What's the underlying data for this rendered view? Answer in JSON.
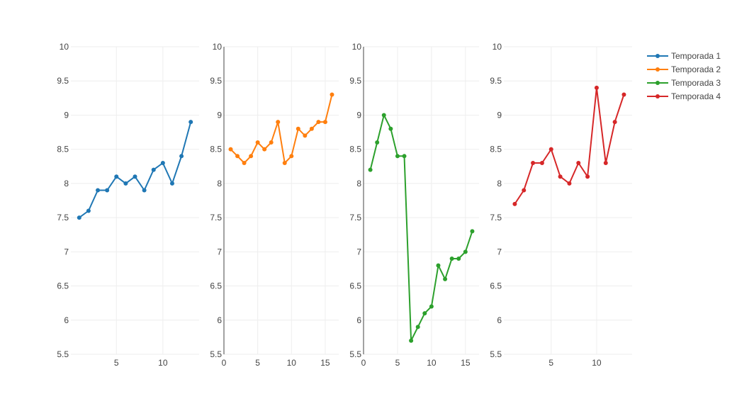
{
  "chart_data": {
    "type": "line",
    "layout": "small-multiples",
    "legend": {
      "placement": "top-right",
      "entries": [
        "Temporada 1",
        "Temporada 2",
        "Temporada 3",
        "Temporada 4"
      ]
    },
    "panels": [
      {
        "series_name": "Temporada 1",
        "color": "#1f77b4",
        "x": [
          1,
          2,
          3,
          4,
          5,
          6,
          7,
          8,
          9,
          10,
          11,
          12,
          13
        ],
        "y": [
          7.5,
          7.6,
          7.9,
          7.9,
          8.1,
          8.0,
          8.1,
          7.9,
          8.2,
          8.3,
          8.0,
          8.4,
          8.9
        ],
        "xlim": [
          0.1,
          13.9
        ],
        "xticks": [
          5,
          10
        ],
        "ylim": [
          5.5,
          10
        ],
        "yticks": [
          5.5,
          6,
          6.5,
          7,
          7.5,
          8,
          8.5,
          9,
          9.5,
          10
        ],
        "show_y_zero_line": false
      },
      {
        "series_name": "Temporada 2",
        "color": "#ff7f0e",
        "x": [
          1,
          2,
          3,
          4,
          5,
          6,
          7,
          8,
          9,
          10,
          11,
          12,
          13,
          14,
          15,
          16
        ],
        "y": [
          8.5,
          8.4,
          8.3,
          8.4,
          8.6,
          8.5,
          8.6,
          8.9,
          8.3,
          8.4,
          8.8,
          8.7,
          8.8,
          8.9,
          8.9,
          9.3
        ],
        "xlim": [
          0,
          17
        ],
        "xticks": [
          0,
          5,
          10,
          15
        ],
        "ylim": [
          5.5,
          10
        ],
        "yticks": [
          5.5,
          6,
          6.5,
          7,
          7.5,
          8,
          8.5,
          9,
          9.5,
          10
        ],
        "show_y_zero_line": true
      },
      {
        "series_name": "Temporada 3",
        "color": "#2ca02c",
        "x": [
          1,
          2,
          3,
          4,
          5,
          6,
          7,
          8,
          9,
          10,
          11,
          12,
          13,
          14,
          15,
          16
        ],
        "y": [
          8.2,
          8.6,
          9.0,
          8.8,
          8.4,
          8.4,
          5.7,
          5.9,
          6.1,
          6.2,
          6.8,
          6.6,
          6.9,
          6.9,
          7.0,
          7.3
        ],
        "xlim": [
          0,
          17
        ],
        "xticks": [
          0,
          5,
          10,
          15
        ],
        "ylim": [
          5.5,
          10
        ],
        "yticks": [
          5.5,
          6,
          6.5,
          7,
          7.5,
          8,
          8.5,
          9,
          9.5,
          10
        ],
        "show_y_zero_line": true
      },
      {
        "series_name": "Temporada 4",
        "color": "#d62728",
        "x": [
          1,
          2,
          3,
          4,
          5,
          6,
          7,
          8,
          9,
          10,
          11,
          12,
          13
        ],
        "y": [
          7.7,
          7.9,
          8.3,
          8.3,
          8.5,
          8.1,
          8.0,
          8.3,
          8.1,
          9.4,
          8.3,
          8.9,
          9.3
        ],
        "xlim": [
          -0.2,
          13.9
        ],
        "xticks": [
          5,
          10
        ],
        "ylim": [
          5.5,
          10
        ],
        "yticks": [
          5.5,
          6,
          6.5,
          7,
          7.5,
          8,
          8.5,
          9,
          9.5,
          10
        ],
        "show_y_zero_line": false
      }
    ],
    "grid": true,
    "gridline_color": "#eeeeee",
    "axis_line_color": "#444444"
  }
}
